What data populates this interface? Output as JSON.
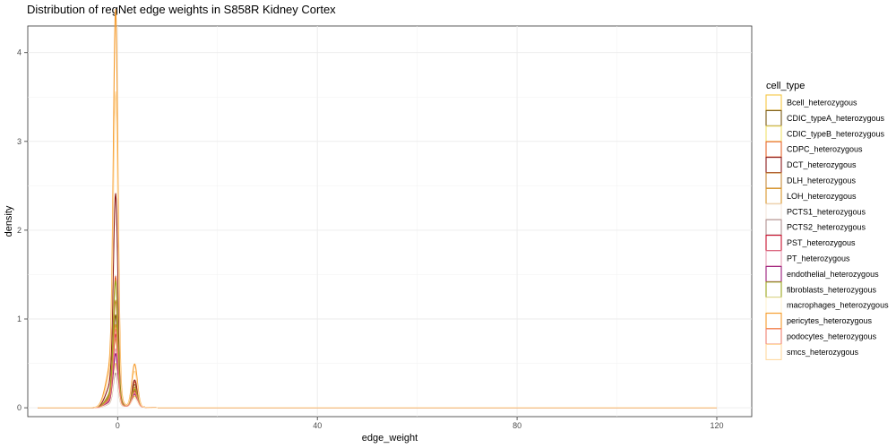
{
  "chart_data": {
    "type": "line",
    "subtype": "density",
    "title": "Distribution of regNet edge weights in S858R Kidney Cortex",
    "xlabel": "edge_weight",
    "ylabel": "density",
    "xlim": [
      -18,
      127
    ],
    "ylim": [
      -0.1,
      4.3
    ],
    "x_ticks": [
      0,
      40,
      80,
      120
    ],
    "y_ticks": [
      0,
      1,
      2,
      3,
      4
    ],
    "grid": true,
    "legend": {
      "title": "cell_type",
      "position": "right"
    },
    "series": [
      {
        "name": "Bcell_heterozygous",
        "color": "#f5c542",
        "peak": 0.45,
        "bump": 0.12,
        "lo": -16,
        "hi": 120
      },
      {
        "name": "CDIC_typeA_heterozygous",
        "color": "#7a5a12",
        "peak": 0.95,
        "bump": 0.25,
        "lo": -16,
        "hi": 120
      },
      {
        "name": "CDIC_typeB_heterozygous",
        "color": "#f0e06a",
        "peak": 0.7,
        "bump": 0.18,
        "lo": -16,
        "hi": 120
      },
      {
        "name": "CDPC_heterozygous",
        "color": "#e8642a",
        "peak": 1.35,
        "bump": 0.28,
        "lo": -16,
        "hi": 120
      },
      {
        "name": "DCT_heterozygous",
        "color": "#8b1a1a",
        "peak": 2.2,
        "bump": 0.3,
        "lo": -16,
        "hi": 120
      },
      {
        "name": "DLH_heterozygous",
        "color": "#c88a3a",
        "peak": 1.1,
        "bump": 0.22,
        "lo": -16,
        "hi": 120
      },
      {
        "name": "LOH_heterozygous",
        "color": "#d9952a",
        "peak": 0.85,
        "bump": 0.2,
        "lo": -16,
        "hi": 120
      },
      {
        "name": "PCTS1_heterozygous",
        "color": "#f4e6dc",
        "peak": 0.5,
        "bump": 0.1,
        "lo": -16,
        "hi": 120
      },
      {
        "name": "PCTS2_heterozygous",
        "color": "#b09090",
        "peak": 0.35,
        "bump": 0.1,
        "lo": -16,
        "hi": 120
      },
      {
        "name": "PST_heterozygous",
        "color": "#c8102e",
        "peak": 0.75,
        "bump": 0.18,
        "lo": -16,
        "hi": 120
      },
      {
        "name": "PT_heterozygous",
        "color": "#e8a0b4",
        "peak": 0.6,
        "bump": 0.15,
        "lo": -16,
        "hi": 120
      },
      {
        "name": "endothelial_heterozygous",
        "color": "#9b1b7a",
        "peak": 0.55,
        "bump": 0.14,
        "lo": -16,
        "hi": 120
      },
      {
        "name": "fibroblasts_heterozygous",
        "color": "#9aa61c",
        "peak": 1.3,
        "bump": 0.2,
        "lo": -16,
        "hi": 120
      },
      {
        "name": "macrophages_heterozygous",
        "color": "#fff3d0",
        "peak": 0.4,
        "bump": 0.1,
        "lo": -16,
        "hi": 120
      },
      {
        "name": "pericytes_heterozygous",
        "color": "#f59a2a",
        "peak": 4.1,
        "bump": 0.48,
        "lo": -16,
        "hi": 120
      },
      {
        "name": "podocytes_heterozygous",
        "color": "#f08070",
        "peak": 0.8,
        "bump": 0.16,
        "lo": -16,
        "hi": 120
      },
      {
        "name": "smcs_heterozygous",
        "color": "#ffd9a0",
        "peak": 3.25,
        "bump": 0.4,
        "lo": -16,
        "hi": 120
      }
    ]
  }
}
